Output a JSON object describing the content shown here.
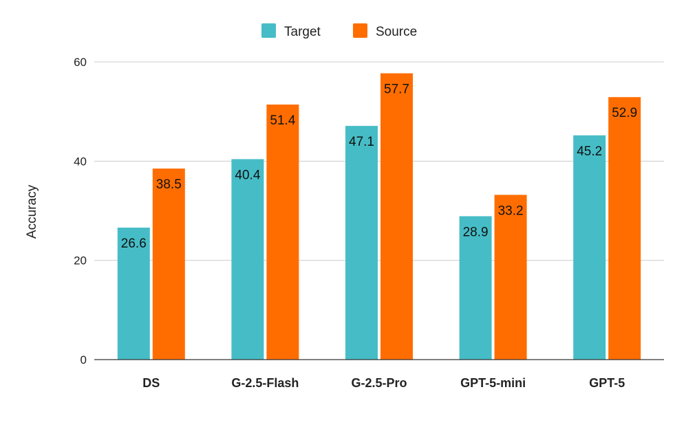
{
  "chart_data": {
    "type": "bar",
    "title": "",
    "xlabel": "",
    "ylabel": "Accuracy",
    "ylim": [
      0,
      60
    ],
    "yticks": [
      0,
      20,
      40,
      60
    ],
    "grid": true,
    "legend_position": "top-center",
    "categories": [
      "DS",
      "G-2.5-Flash",
      "G-2.5-Pro",
      "GPT-5-mini",
      "GPT-5"
    ],
    "series": [
      {
        "name": "Target",
        "color": "#46BDC6",
        "values": [
          26.6,
          40.4,
          47.1,
          28.9,
          45.2
        ]
      },
      {
        "name": "Source",
        "color": "#FF6D01",
        "values": [
          38.5,
          51.4,
          57.7,
          33.2,
          52.9
        ]
      }
    ]
  }
}
